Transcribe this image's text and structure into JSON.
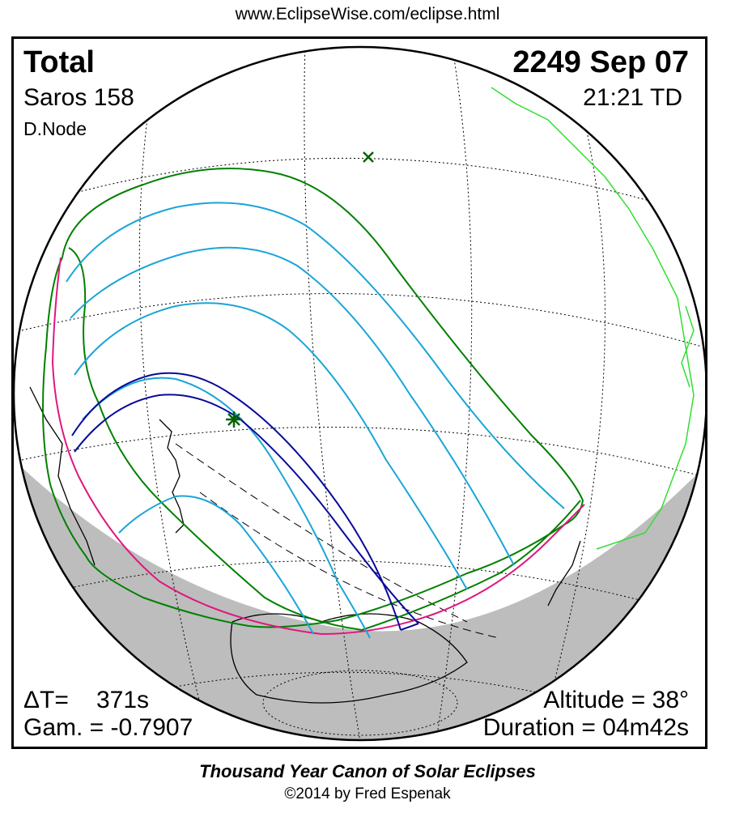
{
  "header": {
    "url": "www.EclipseWise.com/eclipse.html"
  },
  "eclipse": {
    "type": "Total",
    "date": "2249 Sep 07",
    "saros": "Saros 158",
    "time": "21:21 TD",
    "node": "D.Node",
    "delta_t_label": "ΔT=",
    "delta_t_value": "371s",
    "gamma": "Gam. = -0.7907",
    "altitude": "Altitude = 38°",
    "duration": "Duration = 04m42s"
  },
  "footer": {
    "title": "Thousand Year Canon of Solar Eclipses",
    "copyright": "©2014 by Fred Espenak"
  },
  "colors": {
    "penumbra_limit": "#008000",
    "partial_contours": "#1aa5d8",
    "central_path": "#0a0a9a",
    "rise_set_curve": "#e0177f",
    "coastline": "#000000",
    "coastline_highlight": "#33dd33",
    "night_side": "#bdbdbd"
  },
  "markers": {
    "greatest_eclipse": "star",
    "sub_solar_point": "x"
  }
}
